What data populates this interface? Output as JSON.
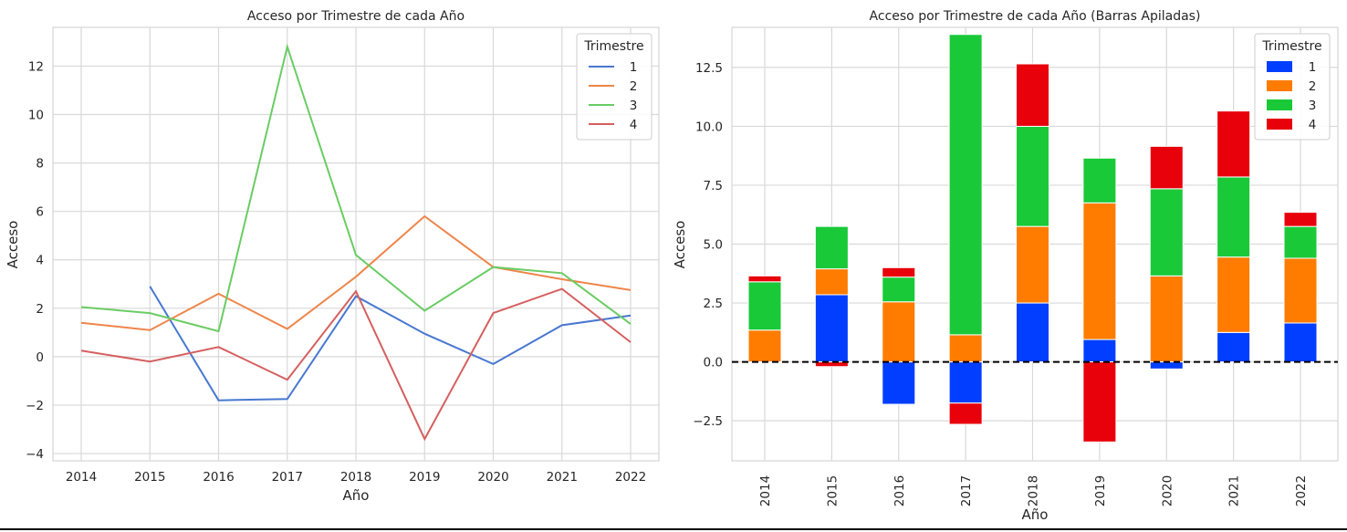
{
  "chart_data": [
    {
      "type": "line",
      "title": "Acceso por Trimestre de cada Año",
      "xlabel": "Año",
      "ylabel": "Acceso",
      "categories": [
        "2014",
        "2015",
        "2016",
        "2017",
        "2018",
        "2019",
        "2020",
        "2021",
        "2022"
      ],
      "ylim": [
        -4.3,
        13.6
      ],
      "yticks": [
        -4,
        -2,
        0,
        2,
        4,
        6,
        8,
        10,
        12
      ],
      "ytick_labels": [
        "−4",
        "−2",
        "0",
        "2",
        "4",
        "6",
        "8",
        "10",
        "12"
      ],
      "grid": true,
      "legend": {
        "title": "Trimestre",
        "position": "top-right"
      },
      "series": [
        {
          "name": "1",
          "color": "#4878d0",
          "values": [
            null,
            2.9,
            -1.8,
            -1.75,
            2.5,
            0.95,
            -0.3,
            1.3,
            1.7
          ]
        },
        {
          "name": "2",
          "color": "#ee854a",
          "values": [
            1.4,
            1.1,
            2.6,
            1.15,
            3.3,
            5.8,
            3.7,
            3.2,
            2.75
          ]
        },
        {
          "name": "3",
          "color": "#6acc64",
          "values": [
            2.05,
            1.8,
            1.05,
            12.8,
            4.2,
            1.9,
            3.7,
            3.45,
            1.35
          ]
        },
        {
          "name": "4",
          "color": "#d65f5f",
          "values": [
            0.25,
            -0.2,
            0.4,
            -0.95,
            2.7,
            -3.4,
            1.8,
            2.8,
            0.6
          ]
        }
      ]
    },
    {
      "type": "bar",
      "stacked": true,
      "title": "Acceso por Trimestre de cada Año (Barras Apiladas)",
      "xlabel": "Año",
      "ylabel": "Acceso",
      "categories": [
        "2014",
        "2015",
        "2016",
        "2017",
        "2018",
        "2019",
        "2020",
        "2021",
        "2022"
      ],
      "ylim": [
        -4.2,
        14.2
      ],
      "yticks": [
        -2.5,
        0,
        2.5,
        5,
        7.5,
        10,
        12.5
      ],
      "ytick_labels": [
        "−2.5",
        "0.0",
        "2.5",
        "5.0",
        "7.5",
        "10.0",
        "12.5"
      ],
      "grid": true,
      "zero_line": {
        "style": "dashed",
        "color": "#000000"
      },
      "legend": {
        "title": "Trimestre",
        "position": "top-right"
      },
      "series": [
        {
          "name": "1",
          "color": "#023eff",
          "values": [
            0,
            2.85,
            -1.8,
            -1.75,
            2.5,
            0.95,
            -0.3,
            1.25,
            1.65
          ]
        },
        {
          "name": "2",
          "color": "#ff7c00",
          "values": [
            1.35,
            1.1,
            2.55,
            1.15,
            3.25,
            5.8,
            3.65,
            3.2,
            2.75
          ]
        },
        {
          "name": "3",
          "color": "#1ac938",
          "values": [
            2.05,
            1.8,
            1.05,
            12.75,
            4.25,
            1.9,
            3.7,
            3.4,
            1.35
          ]
        },
        {
          "name": "4",
          "color": "#e8000b",
          "values": [
            0.25,
            -0.2,
            0.4,
            -0.9,
            2.65,
            -3.4,
            1.8,
            2.8,
            0.6
          ]
        }
      ]
    }
  ]
}
